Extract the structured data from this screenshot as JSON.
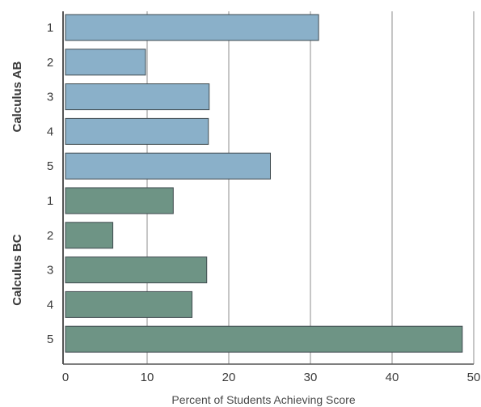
{
  "chart_data": {
    "type": "bar",
    "orientation": "horizontal",
    "xlabel": "Percent of Students Achieving Score",
    "xlim": [
      0,
      50
    ],
    "xticks": [
      0,
      10,
      20,
      30,
      40,
      50
    ],
    "grid": "vertical",
    "groups": [
      {
        "name": "Calculus AB",
        "color": "#8ab0c9",
        "categories": [
          "1",
          "2",
          "3",
          "4",
          "5"
        ],
        "values": [
          31.0,
          9.8,
          17.6,
          17.5,
          25.1
        ]
      },
      {
        "name": "Calculus BC",
        "color": "#6e9485",
        "categories": [
          "1",
          "2",
          "3",
          "4",
          "5"
        ],
        "values": [
          13.2,
          5.8,
          17.3,
          15.5,
          48.6
        ]
      }
    ]
  }
}
